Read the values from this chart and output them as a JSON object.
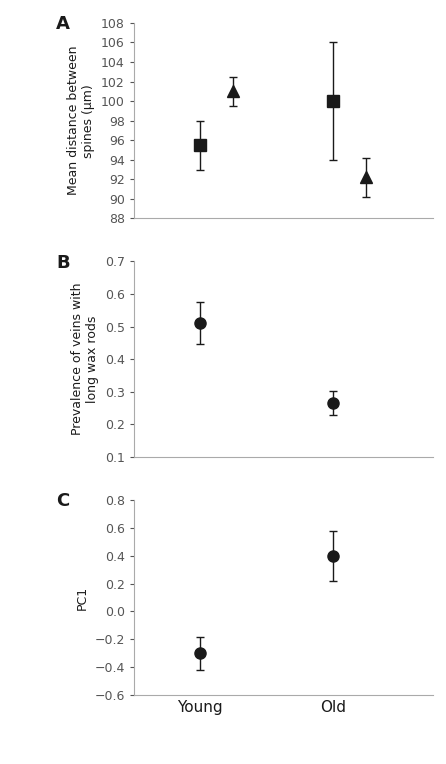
{
  "panel_A": {
    "ylabel": "Mean distance between\nspines (μm)",
    "ylim": [
      88,
      108
    ],
    "yticks": [
      88,
      90,
      92,
      94,
      96,
      98,
      100,
      102,
      104,
      106,
      108
    ],
    "series": [
      {
        "marker": "s",
        "x": [
          1.0,
          2.0
        ],
        "y": [
          95.5,
          100.0
        ],
        "yerr": [
          2.5,
          6.0
        ],
        "color": "#1a1a1a",
        "markersize": 8
      },
      {
        "marker": "^",
        "x": [
          1.25,
          2.25
        ],
        "y": [
          101.0,
          92.2
        ],
        "yerr": [
          1.5,
          2.0
        ],
        "color": "#1a1a1a",
        "markersize": 8
      }
    ]
  },
  "panel_B": {
    "ylabel": "Prevalence of veins with\nlong wax rods",
    "ylim": [
      0.1,
      0.7
    ],
    "yticks": [
      0.1,
      0.2,
      0.3,
      0.4,
      0.5,
      0.6,
      0.7
    ],
    "series": [
      {
        "marker": "o",
        "x": [
          1.0,
          2.0
        ],
        "y": [
          0.51,
          0.265
        ],
        "yerr": [
          0.065,
          0.038
        ],
        "color": "#1a1a1a",
        "markersize": 8
      }
    ]
  },
  "panel_C": {
    "ylabel": "PC1",
    "ylim": [
      -0.6,
      0.8
    ],
    "yticks": [
      -0.6,
      -0.4,
      -0.2,
      0.0,
      0.2,
      0.4,
      0.6,
      0.8
    ],
    "series": [
      {
        "marker": "o",
        "x": [
          1.0,
          2.0
        ],
        "y": [
          -0.3,
          0.4
        ],
        "yerr": [
          0.12,
          0.18
        ],
        "color": "#1a1a1a",
        "markersize": 8
      }
    ]
  },
  "xtick_labels": [
    "Young",
    "Old"
  ],
  "xtick_positions": [
    1.0,
    2.0
  ],
  "xlim": [
    0.5,
    2.75
  ],
  "panel_labels": [
    "A",
    "B",
    "C"
  ],
  "background_color": "#ffffff",
  "capsize": 3,
  "elinewidth": 1.0,
  "spine_color": "#aaaaaa",
  "tick_color": "#555555",
  "label_fontsize": 9,
  "panel_label_fontsize": 13,
  "xtick_fontsize": 11
}
